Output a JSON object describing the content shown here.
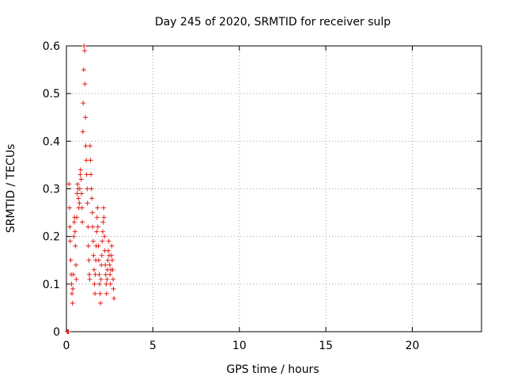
{
  "chart_data": {
    "type": "scatter",
    "title": "Day 245 of 2020, SRMTID for receiver sulp",
    "xlabel": "GPS time / hours",
    "ylabel": "SRMTID / TECUs",
    "xlim": [
      0,
      24
    ],
    "ylim": [
      0,
      0.6
    ],
    "xticks": [
      0,
      5,
      10,
      15,
      20
    ],
    "yticks": [
      0,
      0.1,
      0.2,
      0.3,
      0.4,
      0.5,
      0.6
    ],
    "xtick_labels": [
      "0",
      "5",
      "10",
      "15",
      "20"
    ],
    "ytick_labels": [
      "0",
      "0.1",
      "0.2",
      "0.3",
      "0.4",
      "0.5",
      "0.6"
    ],
    "grid": true,
    "marker": "+",
    "color": "#e0201a",
    "series": [
      {
        "name": "sulp",
        "points": [
          [
            0.05,
            0.0
          ],
          [
            0.08,
            0.0
          ],
          [
            0.1,
            0.0
          ],
          [
            0.12,
            0.0
          ],
          [
            0.15,
            0.31
          ],
          [
            0.18,
            0.26
          ],
          [
            0.2,
            0.22
          ],
          [
            0.22,
            0.19
          ],
          [
            0.25,
            0.15
          ],
          [
            0.28,
            0.12
          ],
          [
            0.3,
            0.1
          ],
          [
            0.32,
            0.08
          ],
          [
            0.35,
            0.06
          ],
          [
            0.37,
            0.09
          ],
          [
            0.4,
            0.12
          ],
          [
            0.42,
            0.2
          ],
          [
            0.45,
            0.23
          ],
          [
            0.47,
            0.24
          ],
          [
            0.5,
            0.21
          ],
          [
            0.52,
            0.18
          ],
          [
            0.55,
            0.14
          ],
          [
            0.57,
            0.11
          ],
          [
            0.6,
            0.24
          ],
          [
            0.62,
            0.29
          ],
          [
            0.65,
            0.31
          ],
          [
            0.67,
            0.3
          ],
          [
            0.7,
            0.28
          ],
          [
            0.72,
            0.26
          ],
          [
            0.75,
            0.27
          ],
          [
            0.77,
            0.3
          ],
          [
            0.8,
            0.33
          ],
          [
            0.82,
            0.34
          ],
          [
            0.85,
            0.32
          ],
          [
            0.87,
            0.29
          ],
          [
            0.9,
            0.26
          ],
          [
            0.92,
            0.23
          ],
          [
            0.95,
            0.42
          ],
          [
            0.97,
            0.48
          ],
          [
            1.0,
            0.55
          ],
          [
            1.02,
            0.6
          ],
          [
            1.05,
            0.59
          ],
          [
            1.07,
            0.52
          ],
          [
            1.1,
            0.45
          ],
          [
            1.12,
            0.39
          ],
          [
            1.15,
            0.36
          ],
          [
            1.17,
            0.33
          ],
          [
            1.2,
            0.3
          ],
          [
            1.22,
            0.27
          ],
          [
            1.25,
            0.22
          ],
          [
            1.27,
            0.18
          ],
          [
            1.3,
            0.15
          ],
          [
            1.32,
            0.12
          ],
          [
            1.35,
            0.11
          ],
          [
            1.37,
            0.39
          ],
          [
            1.4,
            0.36
          ],
          [
            1.42,
            0.33
          ],
          [
            1.45,
            0.3
          ],
          [
            1.47,
            0.28
          ],
          [
            1.5,
            0.25
          ],
          [
            1.52,
            0.22
          ],
          [
            1.55,
            0.19
          ],
          [
            1.57,
            0.16
          ],
          [
            1.6,
            0.13
          ],
          [
            1.62,
            0.1
          ],
          [
            1.65,
            0.08
          ],
          [
            1.67,
            0.12
          ],
          [
            1.7,
            0.15
          ],
          [
            1.72,
            0.18
          ],
          [
            1.75,
            0.21
          ],
          [
            1.77,
            0.24
          ],
          [
            1.8,
            0.26
          ],
          [
            1.82,
            0.22
          ],
          [
            1.85,
            0.18
          ],
          [
            1.87,
            0.15
          ],
          [
            1.9,
            0.12
          ],
          [
            1.92,
            0.1
          ],
          [
            1.95,
            0.08
          ],
          [
            1.97,
            0.06
          ],
          [
            2.0,
            0.11
          ],
          [
            2.02,
            0.14
          ],
          [
            2.05,
            0.16
          ],
          [
            2.07,
            0.19
          ],
          [
            2.1,
            0.21
          ],
          [
            2.12,
            0.23
          ],
          [
            2.15,
            0.26
          ],
          [
            2.17,
            0.24
          ],
          [
            2.2,
            0.2
          ],
          [
            2.22,
            0.17
          ],
          [
            2.25,
            0.14
          ],
          [
            2.27,
            0.12
          ],
          [
            2.3,
            0.1
          ],
          [
            2.32,
            0.08
          ],
          [
            2.35,
            0.11
          ],
          [
            2.37,
            0.13
          ],
          [
            2.4,
            0.15
          ],
          [
            2.42,
            0.17
          ],
          [
            2.45,
            0.19
          ],
          [
            2.47,
            0.16
          ],
          [
            2.5,
            0.14
          ],
          [
            2.52,
            0.12
          ],
          [
            2.55,
            0.1
          ],
          [
            2.57,
            0.13
          ],
          [
            2.6,
            0.16
          ],
          [
            2.62,
            0.18
          ],
          [
            2.65,
            0.15
          ],
          [
            2.67,
            0.13
          ],
          [
            2.7,
            0.11
          ],
          [
            2.72,
            0.09
          ],
          [
            2.75,
            0.07
          ]
        ]
      }
    ]
  }
}
